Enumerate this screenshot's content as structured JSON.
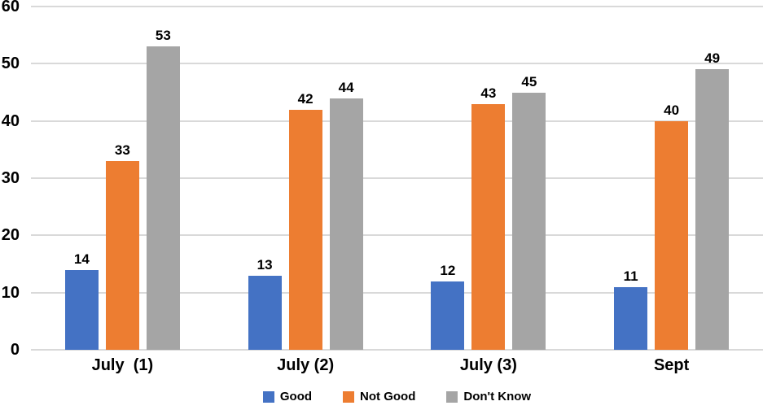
{
  "chart_data": {
    "type": "bar",
    "title": "",
    "categories": [
      "July  (1)",
      "July (2)",
      "July (3)",
      "Sept"
    ],
    "series": [
      {
        "name": "Good",
        "color": "#4472C4",
        "values": [
          14,
          13,
          12,
          11
        ]
      },
      {
        "name": "Not Good",
        "color": "#ED7D31",
        "values": [
          33,
          42,
          43,
          40
        ]
      },
      {
        "name": "Don't Know",
        "color": "#A5A5A5",
        "values": [
          53,
          44,
          45,
          49
        ]
      }
    ],
    "ylim": [
      0,
      60
    ],
    "ytick_step": 10,
    "ytick_labels": [
      "0",
      "10",
      "20",
      "30",
      "40",
      "50",
      "60"
    ],
    "grid": true,
    "gridline_color": "#D9D9D9",
    "value_labels": true,
    "legend_position": "bottom",
    "xlabel": "",
    "ylabel": "",
    "text_color": "#000000",
    "background": "#FFFFFF"
  }
}
